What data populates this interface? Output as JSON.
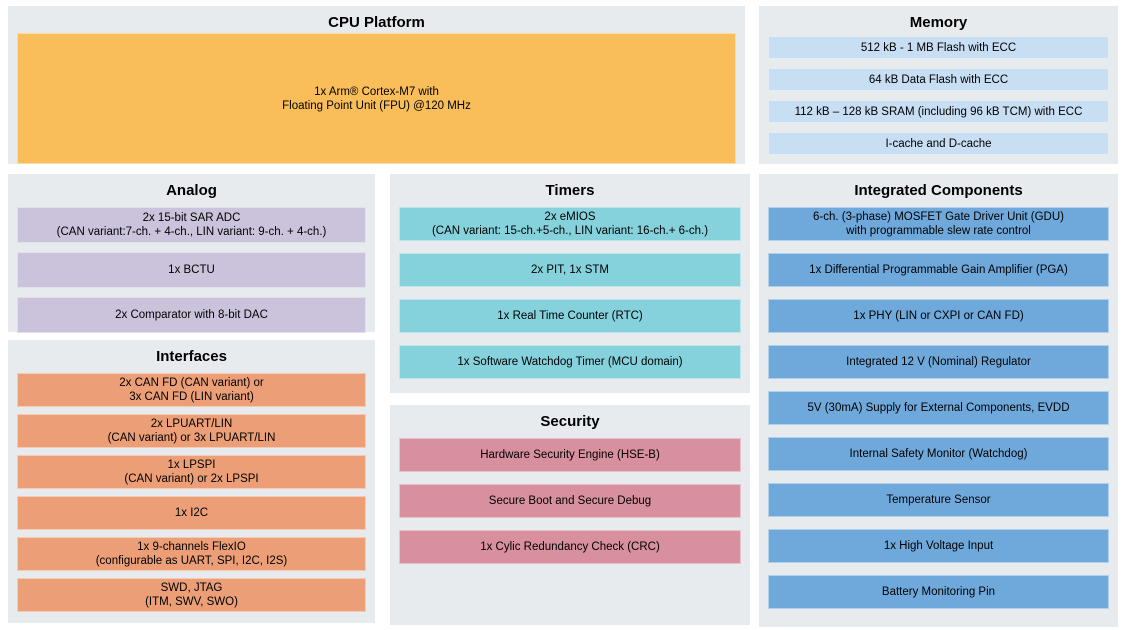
{
  "colors": {
    "panel_bg": "#E7EBEE",
    "cpu": "#F9BE59",
    "memory": "#C8DEF2",
    "analog": "#CBC3DB",
    "timers": "#85D2DD",
    "interfaces": "#EC9F77",
    "security": "#D88F9E",
    "integrated": "#6FA9DC",
    "text": "#000000"
  },
  "sections": [
    {
      "id": "cpu-platform",
      "title": "CPU Platform",
      "color": "#F9BE59",
      "blocks": [
        {
          "lines": [
            "1x Arm® Cortex-M7 with",
            "Floating Point Unit (FPU) @120 MHz"
          ]
        }
      ]
    },
    {
      "id": "memory",
      "title": "Memory",
      "color": "#C8DEF2",
      "blocks": [
        {
          "lines": [
            "512 kB - 1 MB Flash with ECC"
          ]
        },
        {
          "lines": [
            "64 kB Data Flash with ECC"
          ]
        },
        {
          "lines": [
            "112 kB – 128 kB SRAM (including 96 kB TCM) with ECC"
          ]
        },
        {
          "lines": [
            "I-cache and D-cache"
          ]
        }
      ]
    },
    {
      "id": "analog",
      "title": "Analog",
      "color": "#CBC3DB",
      "blocks": [
        {
          "lines": [
            "2x 15-bit SAR ADC",
            "(CAN variant:7-ch. + 4-ch., LIN variant: 9-ch. + 4-ch.)"
          ]
        },
        {
          "lines": [
            "1x BCTU"
          ]
        },
        {
          "lines": [
            "2x Comparator with 8-bit DAC"
          ]
        }
      ]
    },
    {
      "id": "interfaces",
      "title": "Interfaces",
      "color": "#EC9F77",
      "blocks": [
        {
          "lines": [
            "2x CAN FD (CAN variant) or",
            "3x CAN FD (LIN variant)"
          ]
        },
        {
          "lines": [
            "2x LPUART/LIN",
            "(CAN variant) or 3x LPUART/LIN"
          ]
        },
        {
          "lines": [
            "1x LPSPI",
            "(CAN variant) or 2x LPSPI"
          ]
        },
        {
          "lines": [
            "1x I2C"
          ]
        },
        {
          "lines": [
            "1x 9-channels FlexIO",
            "(configurable as UART, SPI, I2C, I2S)"
          ]
        },
        {
          "lines": [
            "SWD, JTAG",
            "(ITM, SWV, SWO)"
          ]
        }
      ]
    },
    {
      "id": "timers",
      "title": "Timers",
      "color": "#85D2DD",
      "blocks": [
        {
          "lines": [
            "2x eMIOS",
            "(CAN variant: 15-ch.+5-ch., LIN variant: 16-ch.+ 6-ch.)"
          ]
        },
        {
          "lines": [
            "2x PIT, 1x STM"
          ]
        },
        {
          "lines": [
            "1x Real Time Counter (RTC)"
          ]
        },
        {
          "lines": [
            "1x Software Watchdog Timer (MCU domain)"
          ]
        }
      ]
    },
    {
      "id": "security",
      "title": "Security",
      "color": "#D88F9E",
      "blocks": [
        {
          "lines": [
            "Hardware Security Engine (HSE-B)"
          ]
        },
        {
          "lines": [
            "Secure Boot and Secure Debug"
          ]
        },
        {
          "lines": [
            "1x Cylic Redundancy Check (CRC)"
          ]
        }
      ]
    },
    {
      "id": "integrated-components",
      "title": "Integrated Components",
      "color": "#6FA9DC",
      "blocks": [
        {
          "lines": [
            "6-ch. (3-phase) MOSFET Gate Driver Unit (GDU)",
            "with programmable slew rate control"
          ]
        },
        {
          "lines": [
            "1x Differential Programmable Gain Amplifier (PGA)"
          ]
        },
        {
          "lines": [
            "1x PHY (LIN or CXPI or CAN FD)"
          ]
        },
        {
          "lines": [
            "Integrated 12 V (Nominal) Regulator"
          ]
        },
        {
          "lines": [
            "5V (30mA) Supply for External Components, EVDD"
          ]
        },
        {
          "lines": [
            "Internal Safety Monitor (Watchdog)"
          ]
        },
        {
          "lines": [
            "Temperature Sensor"
          ]
        },
        {
          "lines": [
            "1x High Voltage Input"
          ]
        },
        {
          "lines": [
            "Battery Monitoring Pin"
          ]
        }
      ]
    }
  ]
}
